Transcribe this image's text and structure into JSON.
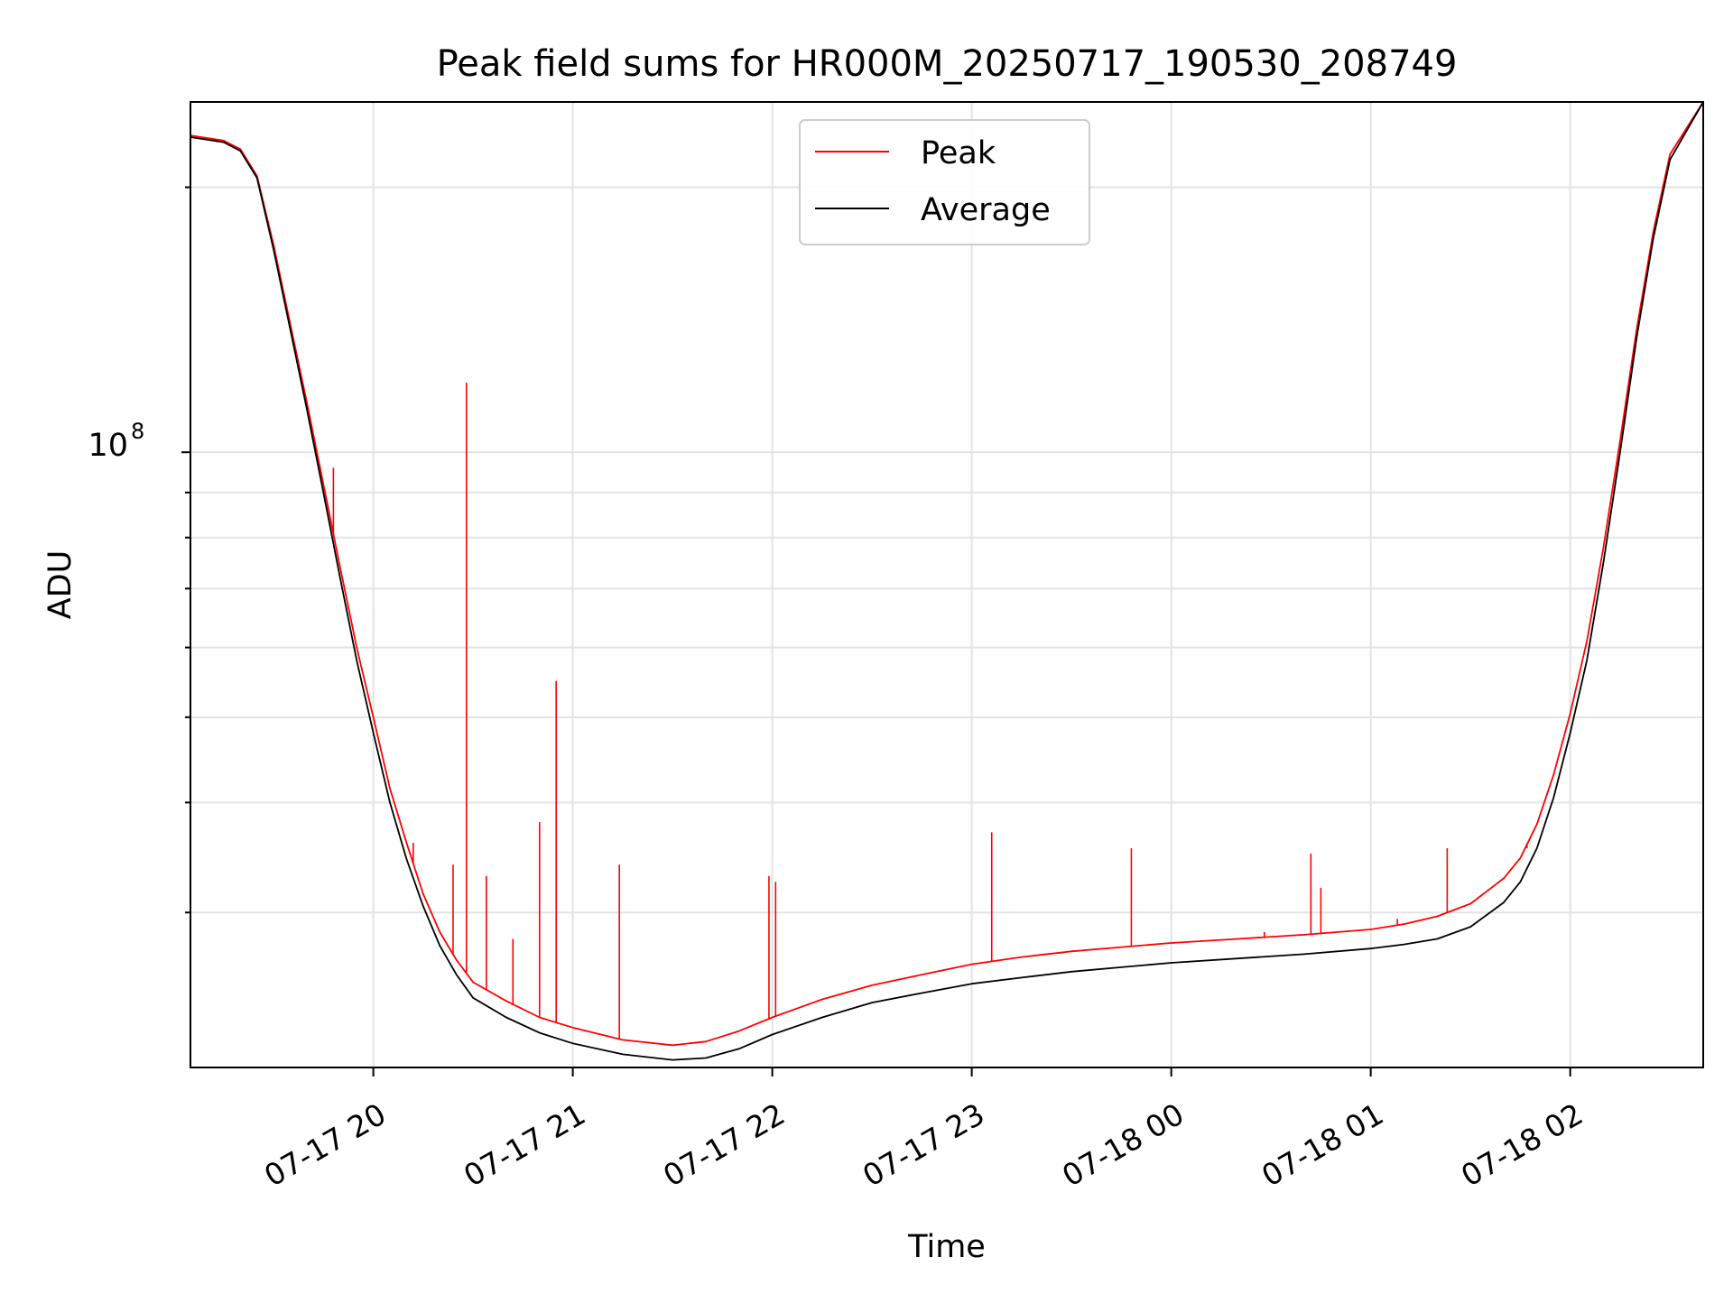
{
  "chart_data": {
    "type": "line",
    "title": "Peak field sums for HR000M_20250717_190530_208749",
    "xlabel": "Time",
    "ylabel": "ADU",
    "y_scale": "log",
    "ylim": [
      20000000,
      250000000
    ],
    "xlim": [
      "2025-07-17 19:05",
      "2025-07-18 02:40"
    ],
    "grid": true,
    "legend_position": "top-center",
    "x_tick_labels": [
      "07-17 20",
      "07-17 21",
      "07-17 22",
      "07-17 23",
      "07-18 00",
      "07-18 01",
      "07-18 02"
    ],
    "x_ticks": [
      "2025-07-17 20:00",
      "2025-07-17 21:00",
      "2025-07-17 22:00",
      "2025-07-17 23:00",
      "2025-07-18 00:00",
      "2025-07-18 01:00",
      "2025-07-18 02:00"
    ],
    "y_tick_label": {
      "base": "10",
      "exponent": "8",
      "value": 100000000
    },
    "colors": {
      "Peak": "#ff0000",
      "Average": "#000000",
      "grid": "#e3e3e3"
    },
    "series": [
      {
        "name": "Average",
        "x": [
          "2025-07-17 19:05",
          "2025-07-17 19:15",
          "2025-07-17 19:20",
          "2025-07-17 19:25",
          "2025-07-17 19:30",
          "2025-07-17 19:35",
          "2025-07-17 19:40",
          "2025-07-17 19:45",
          "2025-07-17 19:50",
          "2025-07-17 19:55",
          "2025-07-17 20:00",
          "2025-07-17 20:05",
          "2025-07-17 20:10",
          "2025-07-17 20:15",
          "2025-07-17 20:20",
          "2025-07-17 20:25",
          "2025-07-17 20:30",
          "2025-07-17 20:40",
          "2025-07-17 20:50",
          "2025-07-17 21:00",
          "2025-07-17 21:15",
          "2025-07-17 21:30",
          "2025-07-17 21:40",
          "2025-07-17 21:50",
          "2025-07-17 22:00",
          "2025-07-17 22:15",
          "2025-07-17 22:30",
          "2025-07-17 22:45",
          "2025-07-17 23:00",
          "2025-07-17 23:15",
          "2025-07-17 23:30",
          "2025-07-17 23:45",
          "2025-07-18 00:00",
          "2025-07-18 00:20",
          "2025-07-18 00:40",
          "2025-07-18 01:00",
          "2025-07-18 01:10",
          "2025-07-18 01:20",
          "2025-07-18 01:30",
          "2025-07-18 01:40",
          "2025-07-18 01:45",
          "2025-07-18 01:50",
          "2025-07-18 01:55",
          "2025-07-18 02:00",
          "2025-07-18 02:05",
          "2025-07-18 02:10",
          "2025-07-18 02:15",
          "2025-07-18 02:20",
          "2025-07-18 02:25",
          "2025-07-18 02:30",
          "2025-07-18 02:40"
        ],
        "y": [
          228000000,
          225000000,
          220000000,
          205000000,
          170000000,
          138000000,
          112000000,
          90000000,
          72000000,
          58000000,
          48000000,
          40000000,
          34500000,
          30500000,
          27500000,
          25500000,
          24000000,
          22800000,
          21900000,
          21300000,
          20700000,
          20400000,
          20500000,
          21000000,
          21800000,
          22800000,
          23700000,
          24300000,
          24900000,
          25300000,
          25700000,
          26000000,
          26300000,
          26600000,
          26900000,
          27300000,
          27600000,
          28000000,
          28900000,
          30800000,
          32500000,
          35500000,
          40500000,
          48000000,
          58000000,
          75000000,
          100000000,
          135000000,
          175000000,
          215000000,
          250000000
        ]
      },
      {
        "name": "Peak",
        "x": [
          "2025-07-17 19:05",
          "2025-07-17 19:15",
          "2025-07-17 19:20",
          "2025-07-17 19:25",
          "2025-07-17 19:30",
          "2025-07-17 19:35",
          "2025-07-17 19:40",
          "2025-07-17 19:45",
          "2025-07-17 19:50",
          "2025-07-17 19:55",
          "2025-07-17 20:00",
          "2025-07-17 20:05",
          "2025-07-17 20:10",
          "2025-07-17 20:15",
          "2025-07-17 20:20",
          "2025-07-17 20:25",
          "2025-07-17 20:30",
          "2025-07-17 20:40",
          "2025-07-17 20:50",
          "2025-07-17 21:00",
          "2025-07-17 21:15",
          "2025-07-17 21:30",
          "2025-07-17 21:40",
          "2025-07-17 21:50",
          "2025-07-17 22:00",
          "2025-07-17 22:15",
          "2025-07-17 22:30",
          "2025-07-17 22:45",
          "2025-07-17 23:00",
          "2025-07-17 23:15",
          "2025-07-17 23:30",
          "2025-07-17 23:45",
          "2025-07-18 00:00",
          "2025-07-18 00:20",
          "2025-07-18 00:40",
          "2025-07-18 01:00",
          "2025-07-18 01:10",
          "2025-07-18 01:20",
          "2025-07-18 01:30",
          "2025-07-18 01:40",
          "2025-07-18 01:45",
          "2025-07-18 01:50",
          "2025-07-18 01:55",
          "2025-07-18 02:00",
          "2025-07-18 02:05",
          "2025-07-18 02:10",
          "2025-07-18 02:15",
          "2025-07-18 02:20",
          "2025-07-18 02:25",
          "2025-07-18 02:30",
          "2025-07-18 02:40"
        ],
        "y": [
          229000000,
          226000000,
          221000000,
          206000000,
          172000000,
          140000000,
          114000000,
          92000000,
          74000000,
          60000000,
          50000000,
          41500000,
          36000000,
          31500000,
          28500000,
          26500000,
          25000000,
          23800000,
          22800000,
          22200000,
          21500000,
          21200000,
          21400000,
          22000000,
          22800000,
          23900000,
          24800000,
          25500000,
          26200000,
          26700000,
          27100000,
          27400000,
          27700000,
          28000000,
          28300000,
          28700000,
          29100000,
          29700000,
          30700000,
          32800000,
          34600000,
          37800000,
          43000000,
          50500000,
          61000000,
          78000000,
          103000000,
          138000000,
          178000000,
          218000000,
          250000000
        ]
      }
    ],
    "peak_spikes": [
      {
        "x": "2025-07-17 19:48",
        "y": 96000000
      },
      {
        "x": "2025-07-17 20:12",
        "y": 36000000
      },
      {
        "x": "2025-07-17 20:24",
        "y": 34000000
      },
      {
        "x": "2025-07-17 20:28",
        "y": 120000000
      },
      {
        "x": "2025-07-17 20:34",
        "y": 33000000
      },
      {
        "x": "2025-07-17 20:42",
        "y": 28000000
      },
      {
        "x": "2025-07-17 20:50",
        "y": 38000000
      },
      {
        "x": "2025-07-17 20:55",
        "y": 55000000
      },
      {
        "x": "2025-07-17 21:14",
        "y": 34000000
      },
      {
        "x": "2025-07-17 21:59",
        "y": 33000000
      },
      {
        "x": "2025-07-17 22:01",
        "y": 32500000
      },
      {
        "x": "2025-07-17 23:06",
        "y": 37000000
      },
      {
        "x": "2025-07-17 23:48",
        "y": 35500000
      },
      {
        "x": "2025-07-18 00:28",
        "y": 28500000
      },
      {
        "x": "2025-07-18 00:42",
        "y": 35000000
      },
      {
        "x": "2025-07-18 00:45",
        "y": 32000000
      },
      {
        "x": "2025-07-18 01:08",
        "y": 29500000
      },
      {
        "x": "2025-07-18 01:23",
        "y": 35500000
      },
      {
        "x": "2025-07-18 01:47",
        "y": 35500000
      }
    ]
  }
}
